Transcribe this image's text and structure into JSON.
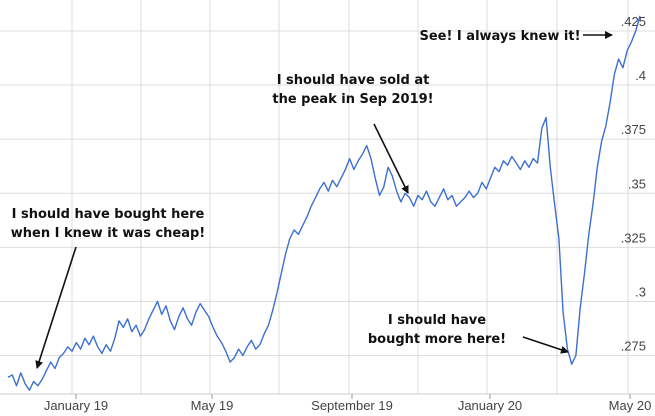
{
  "chart_data": {
    "type": "line",
    "title": "",
    "xlabel": "",
    "ylabel": "",
    "grid": true,
    "line_color": "#3b6fd1",
    "x_ticks": [
      "January 19",
      "May 19",
      "September 19",
      "January 20",
      "May 20"
    ],
    "y_ticks": [
      ".275",
      ".3",
      ".325",
      ".35",
      ".375",
      ".4",
      ".425"
    ],
    "ylim": [
      0.26,
      0.437
    ],
    "series": [
      {
        "values": [
          0.265,
          0.266,
          0.261,
          0.267,
          0.262,
          0.259,
          0.263,
          0.261,
          0.264,
          0.268,
          0.272,
          0.269,
          0.274,
          0.276,
          0.279,
          0.277,
          0.281,
          0.278,
          0.283,
          0.28,
          0.284,
          0.279,
          0.276,
          0.28,
          0.277,
          0.283,
          0.291,
          0.288,
          0.292,
          0.286,
          0.289,
          0.284,
          0.287,
          0.292,
          0.296,
          0.3,
          0.294,
          0.298,
          0.291,
          0.287,
          0.293,
          0.297,
          0.292,
          0.289,
          0.295,
          0.299,
          0.296,
          0.293,
          0.288,
          0.284,
          0.281,
          0.277,
          0.272,
          0.274,
          0.278,
          0.275,
          0.279,
          0.282,
          0.278,
          0.28,
          0.285,
          0.289,
          0.296,
          0.304,
          0.313,
          0.322,
          0.329,
          0.333,
          0.331,
          0.335,
          0.339,
          0.344,
          0.348,
          0.352,
          0.355,
          0.351,
          0.356,
          0.353,
          0.357,
          0.361,
          0.366,
          0.361,
          0.365,
          0.368,
          0.372,
          0.366,
          0.357,
          0.349,
          0.353,
          0.362,
          0.358,
          0.351,
          0.346,
          0.35,
          0.348,
          0.344,
          0.349,
          0.347,
          0.351,
          0.346,
          0.344,
          0.348,
          0.352,
          0.347,
          0.349,
          0.344,
          0.346,
          0.348,
          0.351,
          0.348,
          0.35,
          0.355,
          0.352,
          0.357,
          0.362,
          0.36,
          0.365,
          0.363,
          0.367,
          0.364,
          0.361,
          0.365,
          0.362,
          0.366,
          0.364,
          0.38,
          0.385,
          0.362,
          0.345,
          0.329,
          0.295,
          0.278,
          0.271,
          0.275,
          0.297,
          0.313,
          0.331,
          0.345,
          0.362,
          0.374,
          0.381,
          0.392,
          0.405,
          0.412,
          0.408,
          0.416,
          0.42,
          0.425,
          0.432
        ]
      }
    ],
    "annotations": [
      {
        "lines": [
          "See! I always knew it!"
        ],
        "points_to": "latest value"
      },
      {
        "lines": [
          "I should have sold at",
          "the peak in Sep 2019!"
        ],
        "points_to": "September 2019 peak"
      },
      {
        "lines": [
          "I should have bought here",
          "when I knew it was cheap!"
        ],
        "points_to": "early January 2019 low"
      },
      {
        "lines": [
          "I should have",
          "bought more here!"
        ],
        "points_to": "March 2020 crash low"
      }
    ]
  }
}
